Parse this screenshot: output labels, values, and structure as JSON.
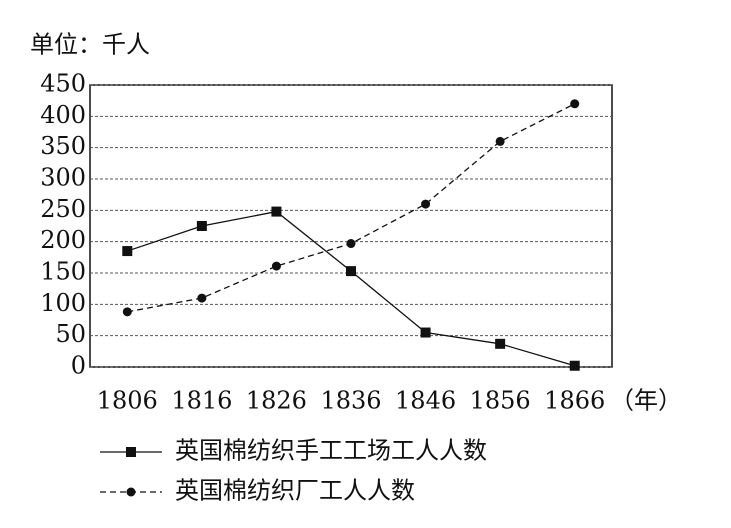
{
  "chart_data": {
    "type": "line",
    "ylabel": "单位：千人",
    "xlabel": "（年）",
    "categories": [
      "1806",
      "1816",
      "1826",
      "1836",
      "1846",
      "1856",
      "1866"
    ],
    "series": [
      {
        "name": "英国棉纺织手工工场工人人数",
        "color": "#111111",
        "line_style": "solid",
        "marker": "square",
        "values": [
          185,
          225,
          248,
          153,
          55,
          37,
          2
        ]
      },
      {
        "name": "英国棉纺织厂工人人数",
        "color": "#111111",
        "line_style": "dashed",
        "marker": "circle",
        "values": [
          88,
          110,
          161,
          197,
          260,
          360,
          420
        ]
      }
    ],
    "ylim": [
      0,
      450
    ],
    "yticks": [
      0,
      50,
      100,
      150,
      200,
      250,
      300,
      350,
      400,
      450
    ],
    "grid": true
  }
}
